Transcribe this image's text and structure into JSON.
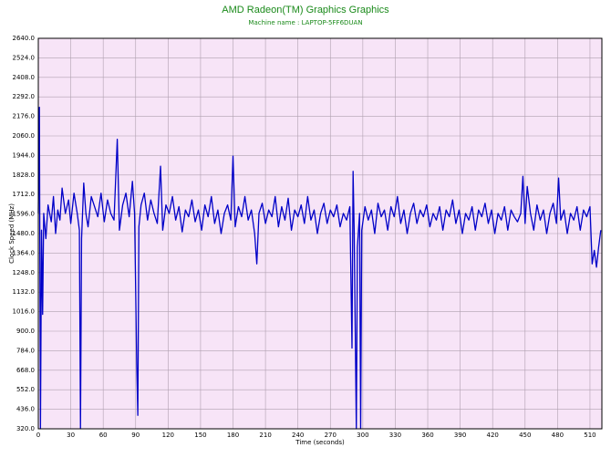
{
  "chart_data": {
    "type": "line",
    "title": "AMD Radeon(TM) Graphics Graphics",
    "subtitle": "Machine name : LAPTOP-5FF6DUAN",
    "xlabel": "Time (seconds)",
    "ylabel": "Clock Speed (MHz)",
    "grid": true,
    "background": "#f7e4f7",
    "x": [
      0,
      1,
      2,
      3,
      4,
      5,
      7,
      9,
      12,
      14,
      16,
      18,
      20,
      22,
      25,
      28,
      30,
      33,
      36,
      38,
      39,
      40,
      42,
      44,
      46,
      49,
      52,
      55,
      58,
      61,
      64,
      67,
      70,
      73,
      75,
      78,
      81,
      84,
      87,
      89,
      91,
      92,
      93,
      95,
      98,
      101,
      104,
      107,
      110,
      113,
      115,
      118,
      121,
      124,
      127,
      130,
      133,
      136,
      139,
      142,
      145,
      148,
      151,
      154,
      157,
      160,
      163,
      166,
      169,
      172,
      175,
      178,
      180,
      182,
      185,
      188,
      191,
      194,
      197,
      200,
      202,
      204,
      207,
      210,
      213,
      216,
      219,
      222,
      225,
      228,
      231,
      234,
      237,
      240,
      243,
      246,
      249,
      252,
      255,
      258,
      261,
      264,
      267,
      270,
      273,
      276,
      279,
      282,
      285,
      288,
      290,
      291,
      292,
      294,
      295,
      297,
      298,
      299,
      302,
      305,
      308,
      311,
      314,
      317,
      320,
      323,
      326,
      329,
      332,
      335,
      338,
      341,
      344,
      347,
      350,
      353,
      356,
      359,
      362,
      365,
      368,
      371,
      374,
      377,
      380,
      383,
      386,
      389,
      392,
      395,
      398,
      401,
      404,
      407,
      410,
      413,
      416,
      419,
      422,
      425,
      428,
      431,
      434,
      437,
      440,
      443,
      446,
      448,
      450,
      452,
      455,
      458,
      461,
      464,
      467,
      470,
      473,
      476,
      479,
      481,
      483,
      486,
      489,
      492,
      495,
      498,
      501,
      504,
      507,
      510,
      512,
      514,
      516,
      518,
      520
    ],
    "series": [
      {
        "name": "Clock Speed",
        "color": "#0000c8",
        "values": [
          1600,
          2230,
          320,
          1500,
          1000,
          1600,
          1450,
          1650,
          1550,
          1700,
          1480,
          1620,
          1560,
          1750,
          1600,
          1680,
          1540,
          1720,
          1600,
          1500,
          320,
          1450,
          1780,
          1600,
          1520,
          1700,
          1640,
          1580,
          1720,
          1550,
          1680,
          1600,
          1560,
          2040,
          1500,
          1650,
          1720,
          1580,
          1790,
          1600,
          700,
          400,
          1520,
          1650,
          1720,
          1560,
          1680,
          1600,
          1540,
          1880,
          1500,
          1650,
          1600,
          1700,
          1560,
          1640,
          1490,
          1620,
          1580,
          1680,
          1550,
          1620,
          1500,
          1650,
          1580,
          1700,
          1540,
          1620,
          1480,
          1600,
          1650,
          1560,
          1940,
          1520,
          1640,
          1580,
          1700,
          1560,
          1620,
          1480,
          1300,
          1600,
          1660,
          1540,
          1620,
          1580,
          1700,
          1520,
          1640,
          1560,
          1690,
          1500,
          1620,
          1580,
          1650,
          1540,
          1700,
          1560,
          1620,
          1480,
          1600,
          1660,
          1540,
          1620,
          1580,
          1650,
          1520,
          1600,
          1560,
          1640,
          800,
          1850,
          1500,
          320,
          1400,
          1600,
          320,
          1500,
          1640,
          1560,
          1620,
          1480,
          1660,
          1580,
          1620,
          1500,
          1640,
          1580,
          1700,
          1540,
          1620,
          1480,
          1600,
          1660,
          1540,
          1620,
          1580,
          1650,
          1520,
          1600,
          1560,
          1640,
          1500,
          1620,
          1580,
          1680,
          1540,
          1620,
          1480,
          1600,
          1560,
          1640,
          1500,
          1620,
          1580,
          1660,
          1540,
          1620,
          1480,
          1600,
          1560,
          1640,
          1500,
          1620,
          1580,
          1550,
          1600,
          1820,
          1540,
          1760,
          1600,
          1500,
          1650,
          1560,
          1620,
          1480,
          1600,
          1660,
          1540,
          1810,
          1560,
          1620,
          1480,
          1600,
          1560,
          1640,
          1500,
          1620,
          1580,
          1640,
          1300,
          1380,
          1280,
          1400,
          1500
        ]
      }
    ],
    "xlim": [
      0,
      521
    ],
    "ylim": [
      320,
      2640
    ],
    "xticks": [
      0,
      30,
      60,
      90,
      120,
      150,
      180,
      210,
      240,
      270,
      300,
      330,
      360,
      390,
      420,
      450,
      480,
      510
    ],
    "yticks": [
      {
        "value": 320,
        "label": "320.0"
      },
      {
        "value": 436,
        "label": "436.0"
      },
      {
        "value": 552,
        "label": "552.0"
      },
      {
        "value": 668,
        "label": "668.0"
      },
      {
        "value": 784,
        "label": "784.0"
      },
      {
        "value": 900,
        "label": "900.0"
      },
      {
        "value": 1016,
        "label": "1016.0"
      },
      {
        "value": 1132,
        "label": "1132.0"
      },
      {
        "value": 1248,
        "label": "1248.0"
      },
      {
        "value": 1364,
        "label": "1364.0"
      },
      {
        "value": 1480,
        "label": "1480.0"
      },
      {
        "value": 1596,
        "label": "1596.0"
      },
      {
        "value": 1712,
        "label": "1712.0"
      },
      {
        "value": 1828,
        "label": "1828.0"
      },
      {
        "value": 1944,
        "label": "1944.0"
      },
      {
        "value": 2060,
        "label": "2060.0"
      },
      {
        "value": 2176,
        "label": "2176.0"
      },
      {
        "value": 2292,
        "label": "2292.0"
      },
      {
        "value": 2408,
        "label": "2408.0"
      },
      {
        "value": 2524,
        "label": "2524.0"
      },
      {
        "value": 2640,
        "label": "2640.0"
      }
    ]
  }
}
